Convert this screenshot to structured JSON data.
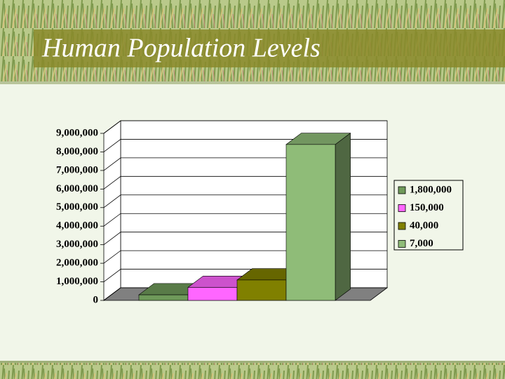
{
  "chart_data": {
    "type": "bar3d",
    "title": "Human Population Levels",
    "categories": [
      null
    ],
    "series": [
      {
        "name": "1,800,000",
        "color": "#6f9a5a",
        "values": [
          300000
        ]
      },
      {
        "name": "150,000",
        "color": "#ff66ff",
        "values": [
          700000
        ]
      },
      {
        "name": "40,000",
        "color": "#808000",
        "values": [
          1100000
        ]
      },
      {
        "name": "7,000",
        "color": "#8fbc78",
        "values": [
          8400000
        ]
      }
    ],
    "ylim": [
      0,
      9000000
    ],
    "yticks": [
      {
        "value": 0,
        "label": "0"
      },
      {
        "value": 1000000,
        "label": "1,000,000"
      },
      {
        "value": 2000000,
        "label": "2,000,000"
      },
      {
        "value": 3000000,
        "label": "3,000,000"
      },
      {
        "value": 4000000,
        "label": "4,000,000"
      },
      {
        "value": 5000000,
        "label": "5,000,000"
      },
      {
        "value": 6000000,
        "label": "6,000,000"
      },
      {
        "value": 7000000,
        "label": "7,000,000"
      },
      {
        "value": 8000000,
        "label": "8,000,000"
      },
      {
        "value": 9000000,
        "label": "9,000,000"
      }
    ],
    "grid": true,
    "legend": "right"
  }
}
